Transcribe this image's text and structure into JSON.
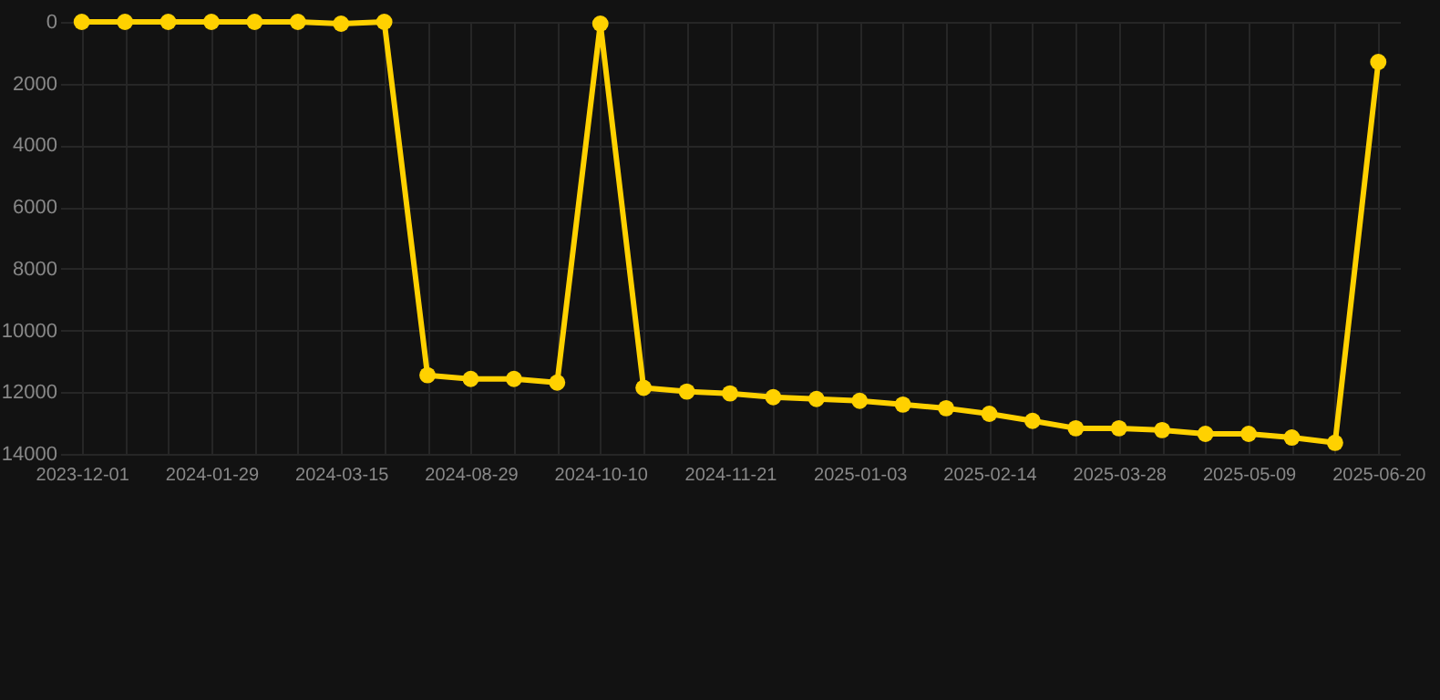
{
  "chart_data": {
    "type": "line",
    "categories": [
      "2023-12-01",
      null,
      null,
      "2024-01-29",
      null,
      null,
      "2024-03-15",
      null,
      null,
      "2024-08-29",
      null,
      null,
      "2024-10-10",
      null,
      null,
      "2024-11-21",
      null,
      null,
      "2025-01-03",
      null,
      null,
      "2025-02-14",
      null,
      null,
      "2025-03-28",
      null,
      null,
      "2025-05-09",
      null,
      null,
      "2025-06-20"
    ],
    "series": [
      {
        "color": "#ffd100",
        "values": [
          0,
          0,
          0,
          0,
          0,
          0,
          60,
          0,
          11450,
          11570,
          11570,
          11690,
          60,
          11860,
          11980,
          12040,
          12160,
          12220,
          12280,
          12400,
          12520,
          12700,
          12930,
          13170,
          13170,
          13230,
          13350,
          13350,
          13470,
          13640,
          1300
        ]
      }
    ],
    "ylim": [
      14000,
      0
    ],
    "yticks": [
      0,
      2000,
      4000,
      6000,
      8000,
      10000,
      12000,
      14000
    ],
    "grid": true,
    "marker": "circle",
    "line_style": "solid"
  }
}
